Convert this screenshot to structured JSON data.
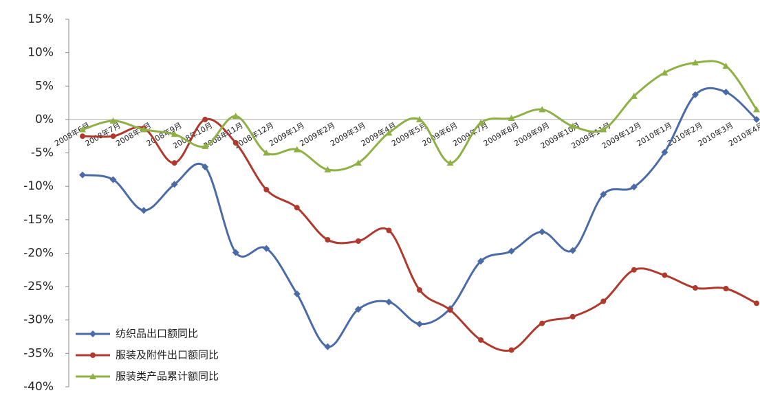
{
  "chart_data": {
    "type": "line",
    "categories": [
      "2008年6月",
      "2008年7月",
      "2008年8月",
      "2008年9月",
      "2008年10月",
      "2008年11月",
      "2008年12月",
      "2009年1月",
      "2009年2月",
      "2009年3月",
      "2009年4月",
      "2009年5月",
      "2009年6月",
      "2009年7月",
      "2009年8月",
      "2009年9月",
      "2009年10月",
      "2009年11月",
      "2009年12月",
      "2010年1月",
      "2010年2月",
      "2010年3月",
      "2010年4月"
    ],
    "series": [
      {
        "name": "纺织品出口额同比",
        "color": "#4a6aa8",
        "marker": "diamond",
        "values": [
          -8.3,
          -9,
          -13.6,
          -9.7,
          -7.1,
          -19.9,
          -19.3,
          -26.1,
          -34,
          -28.4,
          -27.3,
          -30.6,
          -28.3,
          -21.2,
          -19.7,
          -16.8,
          -19.6,
          -11.2,
          -10.1,
          -4.9,
          3.7,
          4.1,
          0
        ]
      },
      {
        "name": "服装及附件出口额同比",
        "color": "#b0392e",
        "marker": "circle",
        "values": [
          -2.5,
          -2.5,
          -1.3,
          -6.5,
          0,
          -3.5,
          -10.5,
          -13.2,
          -18,
          -18.2,
          -16.6,
          -25.5,
          -28.5,
          -33,
          -34.5,
          -30.5,
          -29.5,
          -27.2,
          -22.5,
          -23.3,
          -25.2,
          -25.3,
          -27.5
        ]
      },
      {
        "name": "服装类产品累计额同比",
        "color": "#8fb044",
        "marker": "triangle",
        "values": [
          -1.5,
          -0.2,
          -1.5,
          -2.2,
          -4,
          0.5,
          -5,
          -4.5,
          -7.5,
          -6.5,
          -2,
          0,
          -6.5,
          -0.5,
          0.2,
          1.5,
          -1,
          -1.5,
          3.5,
          7,
          8.5,
          8,
          1.5
        ]
      }
    ],
    "ylim": [
      -40,
      15
    ],
    "yticks": [
      {
        "value": -40,
        "label": "-40%"
      },
      {
        "value": -35,
        "label": "-35%"
      },
      {
        "value": -30,
        "label": "-30%"
      },
      {
        "value": -25,
        "label": "-25%"
      },
      {
        "value": -20,
        "label": "-20%"
      },
      {
        "value": -15,
        "label": "-15%"
      },
      {
        "value": -10,
        "label": "-10%"
      },
      {
        "value": -5,
        "label": "-5%"
      },
      {
        "value": 0,
        "label": "0%"
      },
      {
        "value": 5,
        "label": "5%"
      },
      {
        "value": 10,
        "label": "10%"
      },
      {
        "value": 15,
        "label": "15%"
      }
    ],
    "grid": false,
    "legend": "bottom-left"
  }
}
